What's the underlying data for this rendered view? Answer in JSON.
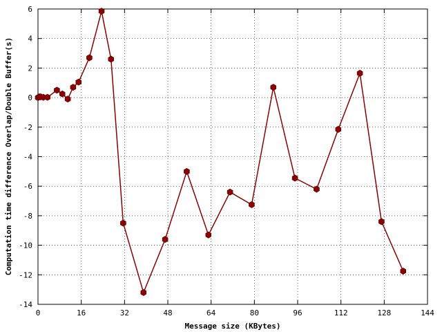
{
  "chart_data": {
    "type": "line",
    "xlabel": "Message size (KBytes)",
    "ylabel": "Computation time difference Overlap/Double Buffer(s)",
    "xlim": [
      0,
      144
    ],
    "ylim": [
      -14,
      6
    ],
    "xticks": [
      0,
      16,
      32,
      48,
      64,
      80,
      96,
      112,
      128,
      144
    ],
    "yticks": [
      -14,
      -12,
      -10,
      -8,
      -6,
      -4,
      -2,
      0,
      2,
      4,
      6
    ],
    "grid": true,
    "legend": "none",
    "series": [
      {
        "color": "#8b0000",
        "marker": "hexagon",
        "x": [
          0,
          0.5,
          1,
          2,
          3.5,
          7,
          9,
          11,
          13,
          15,
          19,
          23.5,
          27,
          31.5,
          39,
          47,
          55,
          63,
          71,
          79,
          87,
          95,
          103,
          111,
          119,
          127,
          135
        ],
        "y": [
          0,
          0.05,
          0.05,
          0.02,
          0.02,
          0.5,
          0.25,
          -0.1,
          0.7,
          1.05,
          2.7,
          5.85,
          2.6,
          -8.5,
          -13.2,
          -9.6,
          -5.0,
          -9.3,
          -6.4,
          -7.25,
          0.7,
          -5.45,
          -6.2,
          -2.15,
          1.65,
          -8.4,
          -11.75
        ]
      }
    ]
  }
}
